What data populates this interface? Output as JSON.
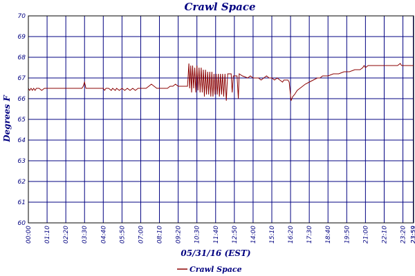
{
  "chart_data": {
    "type": "line",
    "title": "Crawl Space",
    "xlabel": "05/31/16 (EST)",
    "ylabel": "Degrees F",
    "ylim": [
      60,
      70
    ],
    "y_ticks": [
      "60",
      "61",
      "62",
      "63",
      "64",
      "65",
      "66",
      "67",
      "68",
      "69",
      "70"
    ],
    "x_ticks": [
      "00:00",
      "01:10",
      "02:20",
      "03:30",
      "04:40",
      "05:50",
      "07:00",
      "08:10",
      "09:20",
      "10:30",
      "11:40",
      "12:50",
      "14:00",
      "15:10",
      "16:20",
      "17:30",
      "18:40",
      "19:50",
      "21:00",
      "22:10",
      "23:20",
      "23:59",
      "23:59"
    ],
    "grid": true,
    "legend_position": "bottom-center",
    "colors": {
      "series": "#8b0000",
      "grid": "#000080",
      "text": "#000080",
      "frame": "#000000"
    },
    "series": [
      {
        "name": "Crawl Space",
        "points": [
          [
            "00:00",
            66.5
          ],
          [
            "00:05",
            66.4
          ],
          [
            "00:10",
            66.5
          ],
          [
            "00:15",
            66.4
          ],
          [
            "00:20",
            66.5
          ],
          [
            "00:25",
            66.4
          ],
          [
            "00:30",
            66.5
          ],
          [
            "00:40",
            66.5
          ],
          [
            "00:50",
            66.4
          ],
          [
            "01:00",
            66.5
          ],
          [
            "01:10",
            66.5
          ],
          [
            "01:30",
            66.5
          ],
          [
            "02:00",
            66.5
          ],
          [
            "02:30",
            66.5
          ],
          [
            "03:00",
            66.5
          ],
          [
            "03:20",
            66.5
          ],
          [
            "03:25",
            66.6
          ],
          [
            "03:30",
            66.8
          ],
          [
            "03:35",
            66.5
          ],
          [
            "03:45",
            66.5
          ],
          [
            "04:10",
            66.5
          ],
          [
            "04:30",
            66.5
          ],
          [
            "04:40",
            66.5
          ],
          [
            "04:45",
            66.4
          ],
          [
            "04:50",
            66.5
          ],
          [
            "05:00",
            66.5
          ],
          [
            "05:10",
            66.4
          ],
          [
            "05:15",
            66.5
          ],
          [
            "05:25",
            66.4
          ],
          [
            "05:30",
            66.5
          ],
          [
            "05:40",
            66.4
          ],
          [
            "05:50",
            66.5
          ],
          [
            "06:00",
            66.4
          ],
          [
            "06:10",
            66.5
          ],
          [
            "06:20",
            66.4
          ],
          [
            "06:30",
            66.5
          ],
          [
            "06:40",
            66.4
          ],
          [
            "06:50",
            66.5
          ],
          [
            "07:00",
            66.5
          ],
          [
            "07:20",
            66.5
          ],
          [
            "07:30",
            66.6
          ],
          [
            "07:40",
            66.7
          ],
          [
            "07:50",
            66.6
          ],
          [
            "08:00",
            66.5
          ],
          [
            "08:20",
            66.5
          ],
          [
            "08:40",
            66.5
          ],
          [
            "08:50",
            66.6
          ],
          [
            "09:00",
            66.6
          ],
          [
            "09:10",
            66.7
          ],
          [
            "09:20",
            66.6
          ],
          [
            "09:30",
            66.6
          ],
          [
            "09:50",
            66.6
          ],
          [
            "09:55",
            66.6
          ],
          [
            "10:00",
            67.7
          ],
          [
            "10:03",
            66.5
          ],
          [
            "10:07",
            67.6
          ],
          [
            "10:10",
            66.3
          ],
          [
            "10:14",
            67.6
          ],
          [
            "10:18",
            66.5
          ],
          [
            "10:22",
            67.5
          ],
          [
            "10:26",
            66.3
          ],
          [
            "10:30",
            67.6
          ],
          [
            "10:34",
            66.4
          ],
          [
            "10:38",
            67.5
          ],
          [
            "10:42",
            66.3
          ],
          [
            "10:46",
            67.5
          ],
          [
            "10:50",
            66.3
          ],
          [
            "10:54",
            67.4
          ],
          [
            "10:58",
            66.1
          ],
          [
            "11:02",
            67.4
          ],
          [
            "11:06",
            66.2
          ],
          [
            "11:10",
            67.3
          ],
          [
            "11:14",
            66.2
          ],
          [
            "11:18",
            67.3
          ],
          [
            "11:22",
            66.1
          ],
          [
            "11:26",
            67.3
          ],
          [
            "11:30",
            66.1
          ],
          [
            "11:34",
            67.2
          ],
          [
            "11:38",
            66.2
          ],
          [
            "11:42",
            67.2
          ],
          [
            "11:46",
            66.2
          ],
          [
            "11:50",
            67.2
          ],
          [
            "11:54",
            66.1
          ],
          [
            "11:58",
            67.2
          ],
          [
            "12:02",
            66.2
          ],
          [
            "12:06",
            67.2
          ],
          [
            "12:10",
            66.1
          ],
          [
            "12:15",
            67.2
          ],
          [
            "12:20",
            65.9
          ],
          [
            "12:25",
            67.2
          ],
          [
            "12:30",
            67.2
          ],
          [
            "12:38",
            67.2
          ],
          [
            "12:42",
            66.3
          ],
          [
            "12:46",
            67.1
          ],
          [
            "12:55",
            67.1
          ],
          [
            "13:00",
            67.1
          ],
          [
            "13:05",
            66.0
          ],
          [
            "13:08",
            67.2
          ],
          [
            "13:20",
            67.1
          ],
          [
            "13:40",
            67.0
          ],
          [
            "13:50",
            67.1
          ],
          [
            "14:00",
            67.0
          ],
          [
            "14:20",
            67.0
          ],
          [
            "14:30",
            66.9
          ],
          [
            "14:40",
            67.0
          ],
          [
            "14:50",
            67.1
          ],
          [
            "15:00",
            67.0
          ],
          [
            "15:10",
            67.0
          ],
          [
            "15:20",
            66.9
          ],
          [
            "15:30",
            67.0
          ],
          [
            "15:40",
            66.9
          ],
          [
            "15:50",
            66.8
          ],
          [
            "15:55",
            66.9
          ],
          [
            "16:00",
            66.9
          ],
          [
            "16:10",
            66.9
          ],
          [
            "16:15",
            66.8
          ],
          [
            "16:18",
            66.4
          ],
          [
            "16:22",
            65.9
          ],
          [
            "16:28",
            66.1
          ],
          [
            "16:35",
            66.2
          ],
          [
            "16:45",
            66.4
          ],
          [
            "16:55",
            66.5
          ],
          [
            "17:05",
            66.6
          ],
          [
            "17:15",
            66.7
          ],
          [
            "17:30",
            66.8
          ],
          [
            "17:45",
            66.9
          ],
          [
            "18:00",
            67.0
          ],
          [
            "18:10",
            67.0
          ],
          [
            "18:20",
            67.1
          ],
          [
            "18:40",
            67.1
          ],
          [
            "19:00",
            67.2
          ],
          [
            "19:20",
            67.2
          ],
          [
            "19:40",
            67.3
          ],
          [
            "19:50",
            67.3
          ],
          [
            "20:00",
            67.3
          ],
          [
            "20:20",
            67.4
          ],
          [
            "20:40",
            67.4
          ],
          [
            "20:50",
            67.5
          ],
          [
            "20:55",
            67.6
          ],
          [
            "21:00",
            67.5
          ],
          [
            "21:10",
            67.6
          ],
          [
            "21:30",
            67.6
          ],
          [
            "22:00",
            67.6
          ],
          [
            "22:30",
            67.6
          ],
          [
            "23:00",
            67.6
          ],
          [
            "23:10",
            67.7
          ],
          [
            "23:15",
            67.6
          ],
          [
            "23:40",
            67.6
          ],
          [
            "23:59",
            67.6
          ]
        ]
      }
    ]
  }
}
